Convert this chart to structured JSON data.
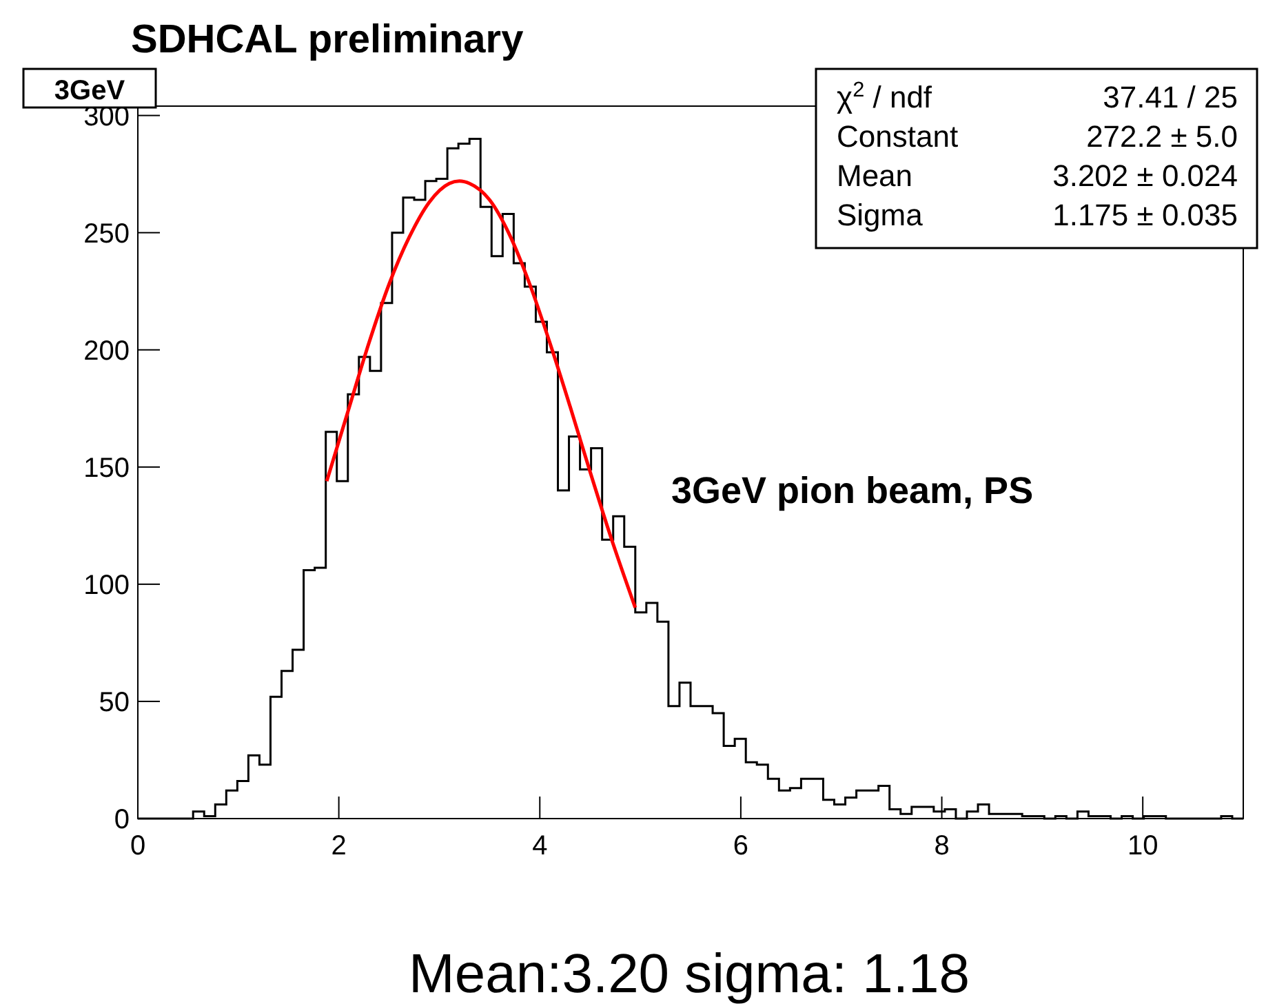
{
  "chart_data": {
    "type": "histogram",
    "title": "SDHCAL preliminary",
    "subtitle": "3GeV",
    "bins": [
      0,
      0.11,
      0.22,
      0.33,
      0.44,
      0.55,
      0.66,
      0.77,
      0.88,
      0.99,
      1.1,
      1.21,
      1.32,
      1.43,
      1.54,
      1.65,
      1.76,
      1.87,
      1.98,
      2.09,
      2.2,
      2.31,
      2.42,
      2.53,
      2.64,
      2.75,
      2.86,
      2.97,
      3.08,
      3.19,
      3.3,
      3.41,
      3.52,
      3.63,
      3.74,
      3.85,
      3.96,
      4.07,
      4.18,
      4.29,
      4.4,
      4.51,
      4.62,
      4.73,
      4.84,
      4.95,
      5.06,
      5.17,
      5.28,
      5.39,
      5.5,
      5.61,
      5.72,
      5.83,
      5.94,
      6.05,
      6.16,
      6.27,
      6.38,
      6.49,
      6.6,
      6.71,
      6.82,
      6.93,
      7.04,
      7.15,
      7.26,
      7.37,
      7.48,
      7.59,
      7.7,
      7.81,
      7.92,
      8.03,
      8.14,
      8.25,
      8.36,
      8.47,
      8.58,
      8.69,
      8.8,
      8.91,
      9.02,
      9.13,
      9.24,
      9.35,
      9.46,
      9.57,
      9.68,
      9.79,
      9.9,
      10.01,
      10.12,
      10.23,
      10.34,
      10.45,
      10.56,
      10.67,
      10.78,
      10.89,
      11
    ],
    "values": [
      0,
      0,
      0,
      0,
      0,
      3,
      1,
      6,
      12,
      16,
      27,
      23,
      52,
      63,
      72,
      106,
      107,
      165,
      144,
      181,
      197,
      191,
      220,
      250,
      265,
      264,
      272,
      273,
      286,
      288,
      290,
      261,
      240,
      258,
      237,
      227,
      212,
      199,
      140,
      163,
      149,
      158,
      119,
      129,
      116,
      88,
      92,
      84,
      48,
      58,
      48,
      48,
      45,
      31,
      34,
      24,
      23,
      17,
      12,
      13,
      17,
      17,
      8,
      6,
      9,
      12,
      12,
      14,
      4,
      2,
      5,
      5,
      3,
      4,
      0,
      3,
      6,
      2,
      2,
      2,
      1,
      1,
      0,
      1,
      0,
      3,
      1,
      1,
      0,
      1,
      0,
      1,
      1,
      0,
      0,
      0,
      0,
      0,
      1,
      0
    ],
    "color": "#000000",
    "series": [
      {
        "type": "line",
        "color": "#ff0000",
        "x": [
          1.88,
          2.1,
          2.3,
          2.5,
          2.7,
          2.9,
          3.1,
          3.2,
          3.3,
          3.5,
          3.7,
          3.9,
          4.1,
          4.3,
          4.5,
          4.7,
          4.95
        ],
        "values": [
          144,
          175,
          203,
          228,
          248,
          263,
          271,
          272,
          271,
          264,
          249,
          228,
          203,
          176,
          148,
          121,
          90
        ]
      }
    ],
    "xlim": [
      0,
      11
    ],
    "xticks": [
      0,
      2,
      4,
      6,
      8,
      10
    ],
    "ylim": [
      0,
      304
    ],
    "yticks": [
      0,
      50,
      100,
      150,
      200,
      250,
      300
    ],
    "grid": false,
    "annotations": [
      "χ$^{2}$ / ndf",
      "37.41 / 25",
      "Constant",
      "272.2 ± 5.0",
      "Mean",
      "3.202 ± 0.024",
      "Sigma",
      "1.175 ± 0.035",
      "3GeV pion beam, PS",
      "Mean:3.20 sigma: 1.18"
    ]
  }
}
